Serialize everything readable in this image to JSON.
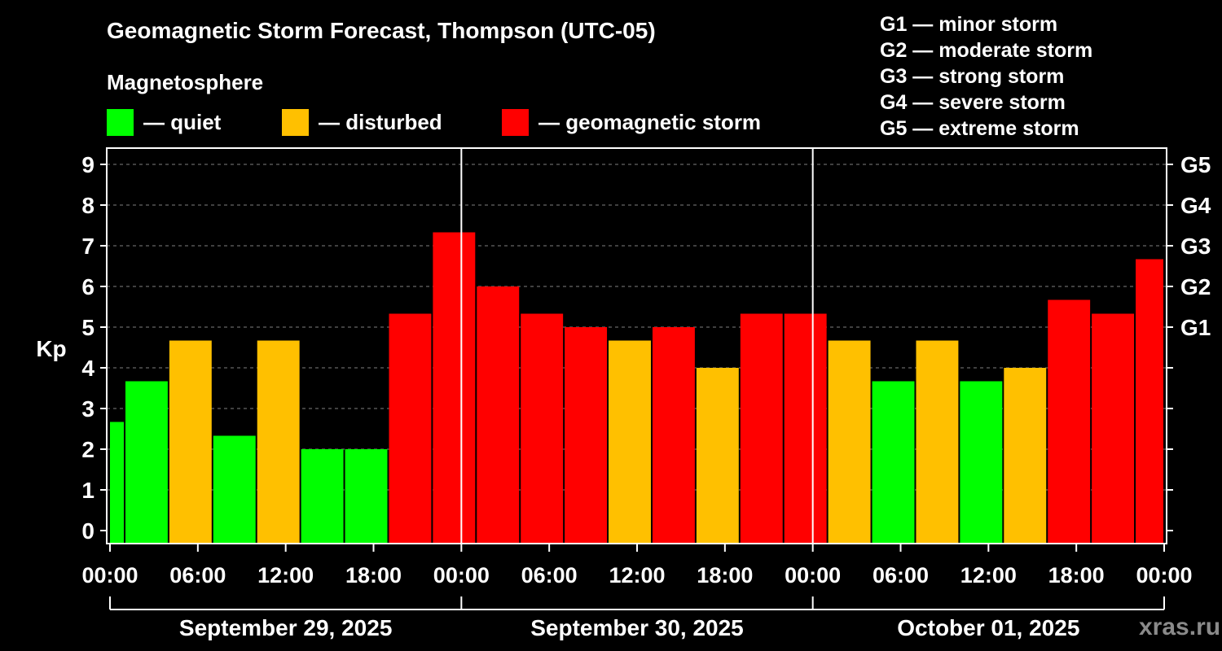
{
  "title": "Geomagnetic Storm Forecast, Thompson (UTC-05)",
  "subtitle": "Magnetosphere",
  "legend": [
    {
      "label": "— quiet",
      "color": "#00ff00"
    },
    {
      "label": "— disturbed",
      "color": "#ffc000"
    },
    {
      "label": "— geomagnetic storm",
      "color": "#ff0000"
    }
  ],
  "g_scale": [
    {
      "text": "G1 — minor storm"
    },
    {
      "text": "G2 — moderate storm"
    },
    {
      "text": "G3 — strong storm"
    },
    {
      "text": "G4 — severe storm"
    },
    {
      "text": "G5 — extreme storm"
    }
  ],
  "watermark": "xras.ru",
  "colors": {
    "quiet": "#00ff00",
    "disturbed": "#ffc000",
    "storm": "#ff0000",
    "background": "#000000",
    "axis": "#ffffff",
    "grid": "#808080"
  },
  "chart_data": {
    "type": "bar",
    "ylabel": "Kp",
    "ylim": [
      0,
      9
    ],
    "yticks": [
      0,
      1,
      2,
      3,
      4,
      5,
      6,
      7,
      8,
      9
    ],
    "right_axis_labels": [
      {
        "kp": 5,
        "label": "G1"
      },
      {
        "kp": 6,
        "label": "G2"
      },
      {
        "kp": 7,
        "label": "G3"
      },
      {
        "kp": 8,
        "label": "G4"
      },
      {
        "kp": 9,
        "label": "G5"
      }
    ],
    "xlim_hours": [
      0,
      72
    ],
    "xticks": [
      {
        "hour": 0,
        "label": "00:00"
      },
      {
        "hour": 6,
        "label": "06:00"
      },
      {
        "hour": 12,
        "label": "12:00"
      },
      {
        "hour": 18,
        "label": "18:00"
      },
      {
        "hour": 24,
        "label": "00:00"
      },
      {
        "hour": 30,
        "label": "06:00"
      },
      {
        "hour": 36,
        "label": "12:00"
      },
      {
        "hour": 42,
        "label": "18:00"
      },
      {
        "hour": 48,
        "label": "00:00"
      },
      {
        "hour": 54,
        "label": "06:00"
      },
      {
        "hour": 60,
        "label": "12:00"
      },
      {
        "hour": 66,
        "label": "18:00"
      },
      {
        "hour": 72,
        "label": "00:00"
      }
    ],
    "days": [
      {
        "label": "September 29, 2025",
        "start": 0,
        "end": 24
      },
      {
        "label": "September 30, 2025",
        "start": 24,
        "end": 48
      },
      {
        "label": "October 01, 2025",
        "start": 48,
        "end": 72
      }
    ],
    "day_dividers_hours": [
      24,
      48
    ],
    "grid": true,
    "bars": [
      {
        "start": 0,
        "end": 1,
        "kp": 2.67,
        "level": "quiet"
      },
      {
        "start": 1,
        "end": 4,
        "kp": 3.67,
        "level": "quiet"
      },
      {
        "start": 4,
        "end": 7,
        "kp": 4.67,
        "level": "disturbed"
      },
      {
        "start": 7,
        "end": 10,
        "kp": 2.33,
        "level": "quiet"
      },
      {
        "start": 10,
        "end": 13,
        "kp": 4.67,
        "level": "disturbed"
      },
      {
        "start": 13,
        "end": 16,
        "kp": 2.0,
        "level": "quiet"
      },
      {
        "start": 16,
        "end": 19,
        "kp": 2.0,
        "level": "quiet"
      },
      {
        "start": 19,
        "end": 22,
        "kp": 5.33,
        "level": "storm"
      },
      {
        "start": 22,
        "end": 25,
        "kp": 7.33,
        "level": "storm"
      },
      {
        "start": 25,
        "end": 28,
        "kp": 6.0,
        "level": "storm"
      },
      {
        "start": 28,
        "end": 31,
        "kp": 5.33,
        "level": "storm"
      },
      {
        "start": 31,
        "end": 34,
        "kp": 5.0,
        "level": "storm"
      },
      {
        "start": 34,
        "end": 37,
        "kp": 4.67,
        "level": "disturbed"
      },
      {
        "start": 37,
        "end": 40,
        "kp": 5.0,
        "level": "storm"
      },
      {
        "start": 40,
        "end": 43,
        "kp": 4.0,
        "level": "disturbed"
      },
      {
        "start": 43,
        "end": 46,
        "kp": 5.33,
        "level": "storm"
      },
      {
        "start": 46,
        "end": 49,
        "kp": 5.33,
        "level": "storm"
      },
      {
        "start": 49,
        "end": 52,
        "kp": 4.67,
        "level": "disturbed"
      },
      {
        "start": 52,
        "end": 55,
        "kp": 3.67,
        "level": "quiet"
      },
      {
        "start": 55,
        "end": 58,
        "kp": 4.67,
        "level": "disturbed"
      },
      {
        "start": 58,
        "end": 61,
        "kp": 3.67,
        "level": "quiet"
      },
      {
        "start": 61,
        "end": 64,
        "kp": 4.0,
        "level": "disturbed"
      },
      {
        "start": 64,
        "end": 67,
        "kp": 5.67,
        "level": "storm"
      },
      {
        "start": 67,
        "end": 70,
        "kp": 5.33,
        "level": "storm"
      },
      {
        "start": 70,
        "end": 72,
        "kp": 6.67,
        "level": "storm"
      }
    ]
  }
}
